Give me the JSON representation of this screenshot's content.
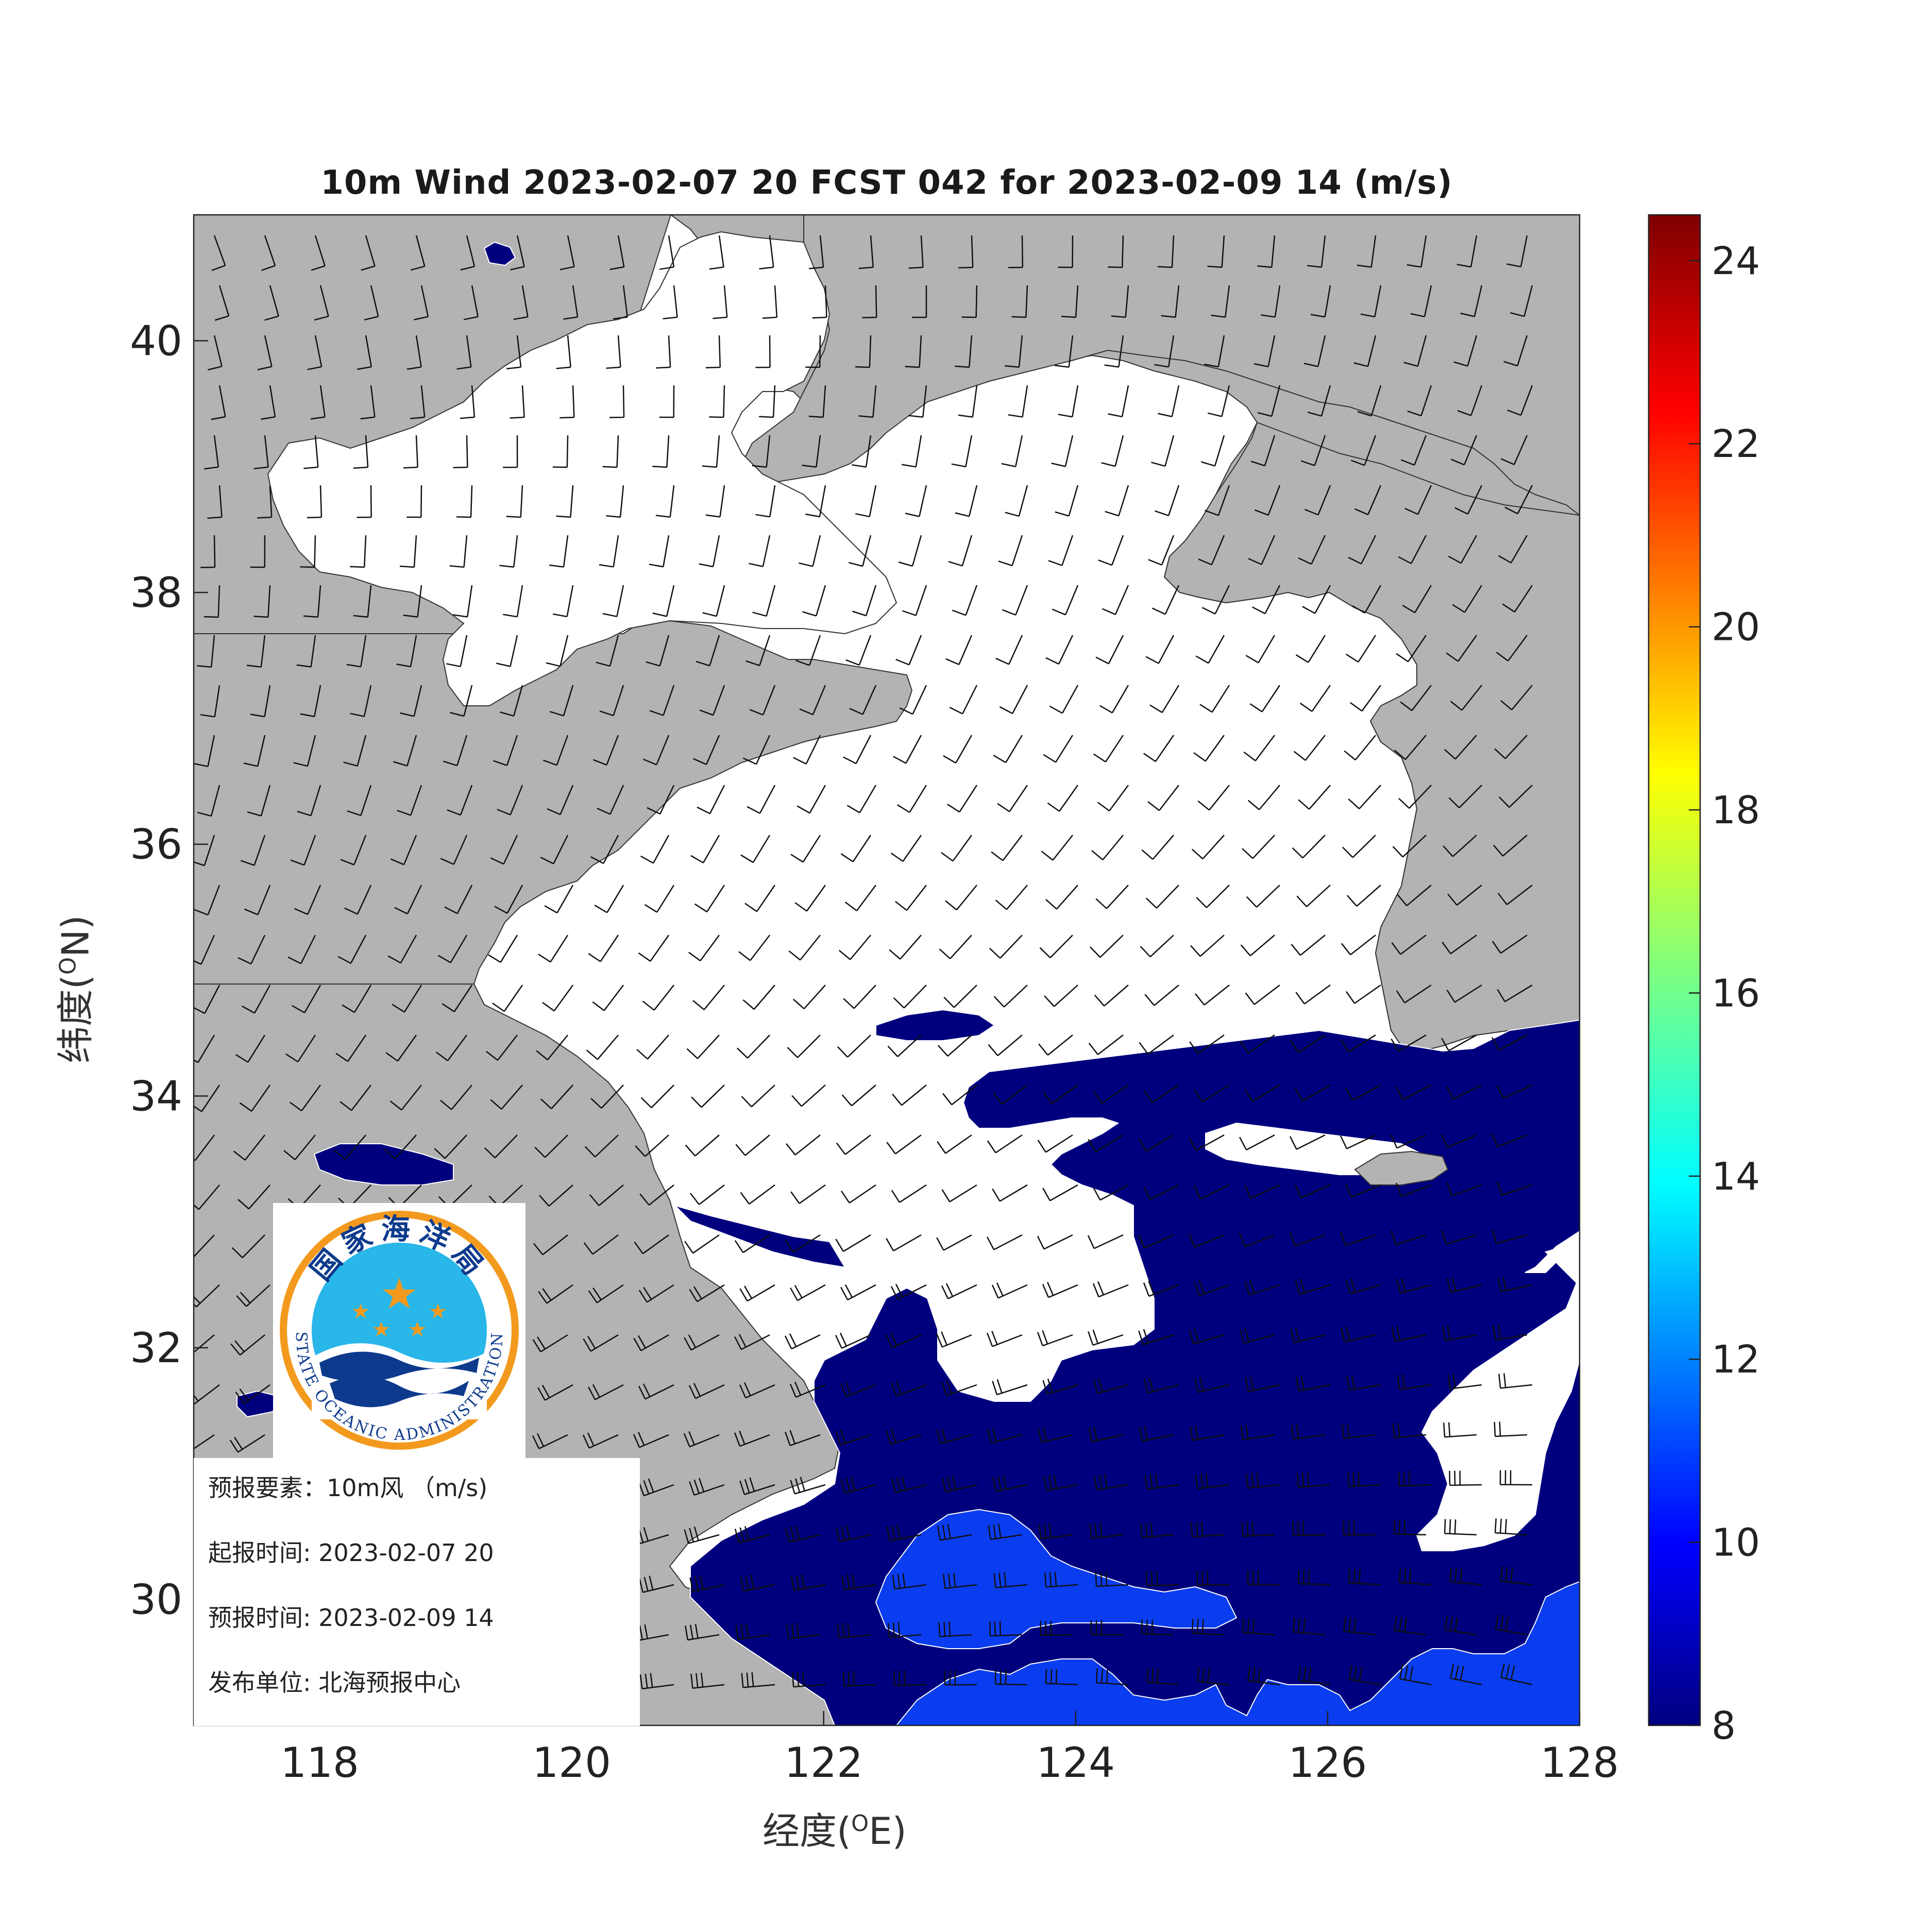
{
  "title": "10m Wind 2023-02-07 20 FCST 042 for 2023-02-09 14 (m/s)",
  "axes": {
    "xlabel_text": "经度(",
    "xlabel_sup": "O",
    "xlabel_tail": "E)",
    "ylabel_text": "纬度(",
    "ylabel_sup": "O",
    "ylabel_tail": "N)",
    "x_ticks": [
      "118",
      "120",
      "122",
      "124",
      "126",
      "128"
    ],
    "y_ticks": [
      "40",
      "38",
      "36",
      "34",
      "32",
      "30"
    ]
  },
  "colorbar": {
    "ticks": [
      "24",
      "22",
      "20",
      "18",
      "16",
      "14",
      "12",
      "10",
      "8"
    ],
    "range": [
      8,
      24.5
    ],
    "colormap": "jet"
  },
  "info": {
    "element_label": "预报要素：",
    "element_value": "10m风 （m/s)",
    "init_label": "起报时间:",
    "init_value": "2023-02-07 20",
    "valid_label": "预报时间:",
    "valid_value": "2023-02-09 14",
    "issuer_label": "发布单位:",
    "issuer_value": "北海预报中心"
  },
  "logo": {
    "top_text": "国家海洋局",
    "ring_text": "STATE OCEANIC ADMINISTRATION"
  },
  "colors": {
    "land": "#b3b3b3",
    "sea_calm": "#ffffff",
    "wind_8_10": "#00007f",
    "wind_10_12": "#0a3cf0",
    "barb": "#111111",
    "logo_ring": "#f39a1e",
    "logo_sky": "#29b6e8",
    "logo_wave": "#0d3a8c"
  },
  "chart_data": {
    "type": "wind-map",
    "extent_lon": [
      117,
      128
    ],
    "extent_lat": [
      29,
      41
    ]
  }
}
